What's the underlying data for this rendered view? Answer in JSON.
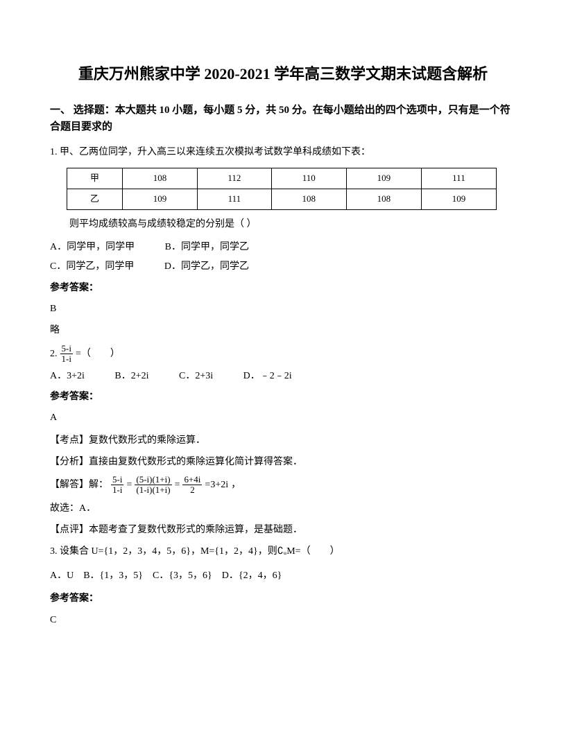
{
  "title": "重庆万州熊家中学 2020-2021 学年高三数学文期末试题含解析",
  "section_header": "一、 选择题：本大题共 10 小题，每小题 5 分，共 50 分。在每小题给出的四个选项中，只有是一个符合题目要求的",
  "q1": {
    "stem": "1. 甲、乙两位同学，升入高三以来连续五次模拟考试数学单科成绩如下表：",
    "table": {
      "rows": [
        [
          "甲",
          "108",
          "112",
          "110",
          "109",
          "111"
        ],
        [
          "乙",
          "109",
          "111",
          "108",
          "108",
          "109"
        ]
      ]
    },
    "sub": "则平均成绩较高与成绩较稳定的分别是（ ）",
    "optA": "A．同学甲，同学甲",
    "optB": "B．同学甲，同学乙",
    "optC": "C．同学乙，同学甲",
    "optD": "D．同学乙，同学乙",
    "answer_label": "参考答案：",
    "answer": "B",
    "note": "略"
  },
  "q2": {
    "prefix": "2.",
    "frac_num": "5-i",
    "frac_den": "1-i",
    "eq_suffix": "=（　　）",
    "optA": "A．3+2i",
    "optB": "B．2+2i",
    "optC": "C．2+3i",
    "optD": "D．﹣2﹣2i",
    "answer_label": "参考答案：",
    "answer": "A",
    "kaodian": "【考点】复数代数形式的乘除运算．",
    "fenxi": "【分析】直接由复数代数形式的乘除运算化简计算得答案．",
    "jieda_prefix": "【解答】解：",
    "jieda_f1_num": "5-i",
    "jieda_f1_den": "1-i",
    "jieda_eq1": "=",
    "jieda_f2_num": "(5-i)(1+i)",
    "jieda_f2_den": "(1-i)(1+i)",
    "jieda_eq2": "=",
    "jieda_f3_num": "6+4i",
    "jieda_f3_den": "2",
    "jieda_result": "=3+2i",
    "jieda_comma": "，",
    "guxuan": "故选：A．",
    "dianping": "【点评】本题考查了复数代数形式的乘除运算，是基础题．"
  },
  "q3": {
    "stem": "3. 设集合 U={1，2，3，4，5，6}，M={1，2，4}，则∁ᵤM=（　　）",
    "options": "A．U　B．{1，3，5}　C．{3，5，6}　D．{2，4，6}",
    "answer_label": "参考答案：",
    "answer": "C"
  }
}
